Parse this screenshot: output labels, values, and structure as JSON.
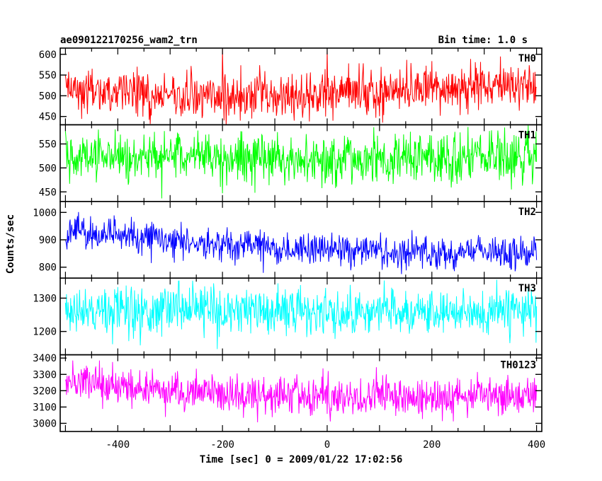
{
  "header": {
    "title": "ae090122170256_wam2_trn",
    "bin_time": "Bin time: 1.0 s"
  },
  "chart_data": {
    "type": "line",
    "xlabel": "Time [sec] 0 = 2009/01/22 17:02:56",
    "ylabel": "Counts/sec",
    "xlim": [
      -510,
      410
    ],
    "xticks": [
      -400,
      -200,
      0,
      200,
      400
    ],
    "x_range": [
      -500,
      400
    ],
    "bin_seconds": 1.0,
    "grid": false,
    "panels": [
      {
        "name": "TH0",
        "color": "#ff0000",
        "ylim": [
          430,
          615
        ],
        "yticks": [
          450,
          500,
          550,
          600
        ],
        "trend": {
          "x": [
            -500,
            -300,
            -100,
            100,
            300,
            400
          ],
          "y": [
            510,
            505,
            500,
            510,
            525,
            530
          ]
        },
        "noise_sd": 28,
        "spikes": [
          {
            "x": -200,
            "y": 615
          },
          {
            "x": 0,
            "y": 615
          }
        ]
      },
      {
        "name": "TH1",
        "color": "#00ff00",
        "ylim": [
          430,
          590
        ],
        "yticks": [
          450,
          500,
          550
        ],
        "trend": {
          "x": [
            -500,
            -300,
            -100,
            100,
            300,
            400
          ],
          "y": [
            522,
            522,
            520,
            520,
            522,
            525
          ]
        },
        "noise_sd": 27,
        "spikes": []
      },
      {
        "name": "TH2",
        "color": "#0000ff",
        "ylim": [
          760,
          1040
        ],
        "yticks": [
          800,
          900,
          1000
        ],
        "trend": {
          "x": [
            -500,
            -400,
            -300,
            -200,
            0,
            200,
            400
          ],
          "y": [
            930,
            915,
            895,
            880,
            865,
            855,
            850
          ]
        },
        "noise_sd": 30,
        "spikes": []
      },
      {
        "name": "TH3",
        "color": "#00ffff",
        "ylim": [
          1130,
          1360
        ],
        "yticks": [
          1200,
          1300
        ],
        "trend": {
          "x": [
            -500,
            -300,
            -100,
            100,
            300,
            400
          ],
          "y": [
            1262,
            1262,
            1258,
            1260,
            1262,
            1265
          ]
        },
        "noise_sd": 35,
        "spikes": []
      },
      {
        "name": "TH0123",
        "color": "#ff00ff",
        "ylim": [
          2950,
          3420
        ],
        "yticks": [
          3000,
          3100,
          3200,
          3300,
          3400
        ],
        "trend": {
          "x": [
            -500,
            -400,
            -300,
            -200,
            0,
            200,
            400
          ],
          "y": [
            3250,
            3230,
            3200,
            3180,
            3160,
            3160,
            3170
          ]
        },
        "noise_sd": 60,
        "spikes": []
      }
    ]
  }
}
